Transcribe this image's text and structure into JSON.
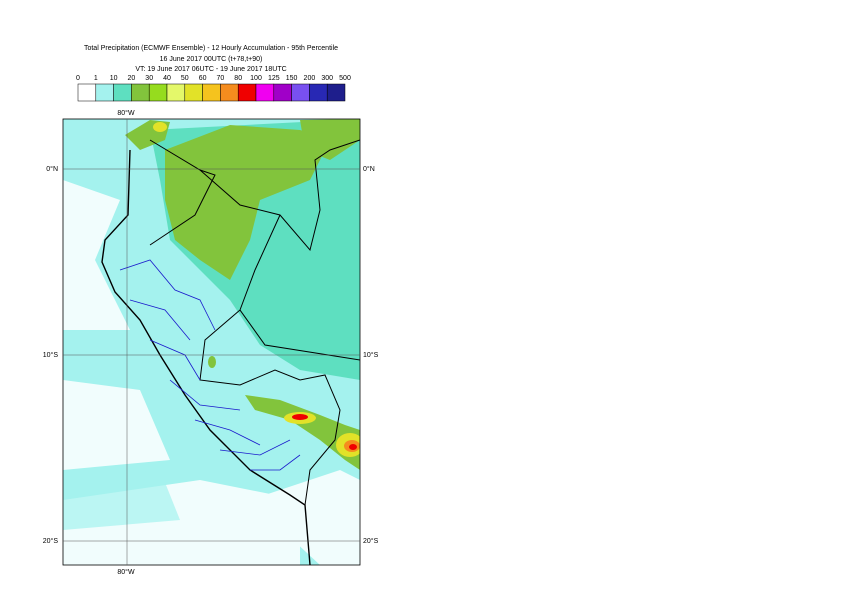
{
  "title": [
    "Total Precipitation (ECMWF Ensemble) - 12 Hourly Accumulation - 95th Percentile",
    "16 June 2017 00UTC (t+78,t+90)",
    "VT: 19 June 2017 06UTC - 19 June 2017 18UTC"
  ],
  "legend": {
    "thresholds": [
      0,
      1,
      10,
      20,
      30,
      40,
      50,
      60,
      70,
      80,
      100,
      125,
      150,
      200,
      300,
      500
    ],
    "colors": [
      "#ffffff",
      "#a4f2ee",
      "#5edfc0",
      "#82c43c",
      "#96dc1e",
      "#e4f86a",
      "#e2e228",
      "#f5c31e",
      "#f58c1e",
      "#f00000",
      "#f000f0",
      "#a000c8",
      "#7850f0",
      "#2828b4",
      "#1e1e8c",
      "#0a0a50"
    ]
  },
  "grid_labels": {
    "lon": [
      "80°W"
    ],
    "lat": [
      "0°N",
      "10°S",
      "20°S"
    ]
  }
}
